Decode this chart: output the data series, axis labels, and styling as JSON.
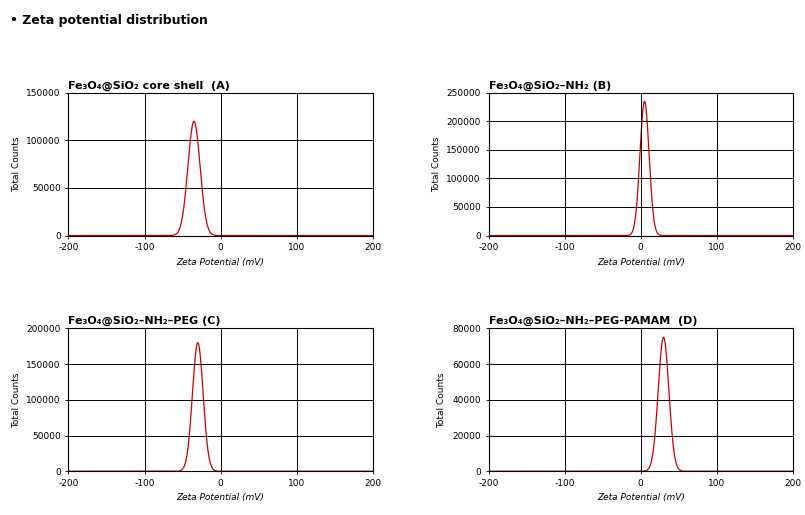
{
  "title": "• Zeta potential distribution",
  "panels": [
    {
      "label": "Fe₃O₄@SiO₂ core shell  (A)",
      "mean": -35,
      "std": 8,
      "amplitude": 120000,
      "ylim": [
        0,
        150000
      ],
      "yticks": [
        0,
        50000,
        100000,
        150000
      ],
      "xlim": [
        -200,
        200
      ],
      "xticks": [
        -200,
        -100,
        0,
        100,
        200
      ]
    },
    {
      "label": "Fe₃O₄@SiO₂–NH₂ (B)",
      "mean": 5,
      "std": 6,
      "amplitude": 235000,
      "ylim": [
        0,
        250000
      ],
      "yticks": [
        0,
        50000,
        100000,
        150000,
        200000,
        250000
      ],
      "xlim": [
        -200,
        200
      ],
      "xticks": [
        -200,
        -100,
        0,
        100,
        200
      ]
    },
    {
      "label": "Fe₃O₄@SiO₂–NH₂–PEG (C)",
      "mean": -30,
      "std": 7,
      "amplitude": 180000,
      "ylim": [
        0,
        200000
      ],
      "yticks": [
        0,
        50000,
        100000,
        150000,
        200000
      ],
      "xlim": [
        -200,
        200
      ],
      "xticks": [
        -200,
        -100,
        0,
        100,
        200
      ]
    },
    {
      "label": "Fe₃O₄@SiO₂–NH₂–PEG-PAMAM  (D)",
      "mean": 30,
      "std": 7,
      "amplitude": 75000,
      "ylim": [
        0,
        80000
      ],
      "yticks": [
        0,
        20000,
        40000,
        60000,
        80000
      ],
      "xlim": [
        -200,
        200
      ],
      "xticks": [
        -200,
        -100,
        0,
        100,
        200
      ]
    }
  ],
  "xlabel": "Zeta Potential (mV)",
  "ylabel": "Total Counts",
  "line_color": "#cc0000",
  "grid_color": "#000000",
  "bg_color": "#ffffff",
  "title_fontsize": 9,
  "panel_label_fontsize": 8,
  "tick_fontsize": 6.5,
  "axis_label_fontsize": 6.5
}
